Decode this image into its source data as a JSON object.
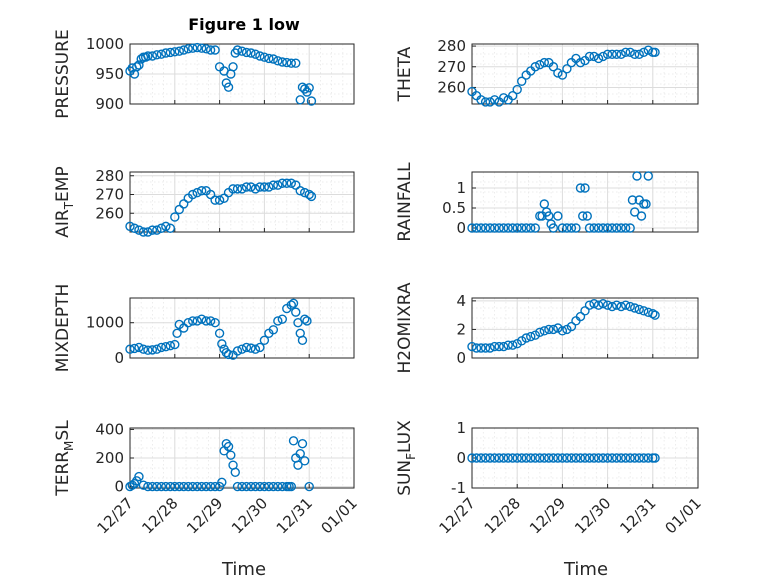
{
  "figure": {
    "title": "Figure 1 low",
    "xlabel": "Time"
  },
  "colors": {
    "marker": "#0072BD",
    "axis": "#262626"
  },
  "chart_data": [
    {
      "id": "pressure",
      "type": "scatter",
      "ylabel": "PRESSURE",
      "ylim": [
        900,
        1000
      ],
      "yticks": [
        "900",
        "950",
        "1000"
      ],
      "ytick_values": [
        900,
        950,
        1000
      ],
      "x": [
        0,
        0.05,
        0.1,
        0.15,
        0.2,
        0.25,
        0.3,
        0.35,
        0.4,
        0.5,
        0.6,
        0.7,
        0.8,
        0.9,
        1.0,
        1.1,
        1.2,
        1.3,
        1.4,
        1.5,
        1.6,
        1.7,
        1.8,
        1.9,
        2.0,
        2.1,
        2.15,
        2.2,
        2.25,
        2.3,
        2.35,
        2.4,
        2.5,
        2.6,
        2.7,
        2.8,
        2.9,
        3.0,
        3.1,
        3.2,
        3.3,
        3.4,
        3.5,
        3.6,
        3.7,
        3.8,
        3.85,
        3.9,
        3.95,
        4.0,
        4.05
      ],
      "y": [
        955,
        960,
        950,
        962,
        965,
        975,
        978,
        978,
        980,
        980,
        982,
        983,
        985,
        986,
        987,
        988,
        990,
        992,
        993,
        994,
        993,
        992,
        990,
        990,
        962,
        955,
        935,
        928,
        950,
        962,
        985,
        990,
        988,
        986,
        985,
        983,
        980,
        978,
        976,
        975,
        972,
        970,
        969,
        968,
        968,
        907,
        928,
        925,
        920,
        927,
        905
      ]
    },
    {
      "id": "theta",
      "type": "scatter",
      "ylabel": "THETA",
      "ylim": [
        252,
        281
      ],
      "yticks": [
        "260",
        "270",
        "280"
      ],
      "ytick_values": [
        260,
        270,
        280
      ],
      "x": [
        0,
        0.1,
        0.2,
        0.3,
        0.4,
        0.5,
        0.6,
        0.7,
        0.8,
        0.9,
        1.0,
        1.1,
        1.2,
        1.3,
        1.4,
        1.5,
        1.6,
        1.7,
        1.8,
        1.9,
        2.0,
        2.1,
        2.2,
        2.3,
        2.4,
        2.5,
        2.6,
        2.7,
        2.8,
        2.9,
        3.0,
        3.1,
        3.2,
        3.3,
        3.4,
        3.5,
        3.6,
        3.7,
        3.8,
        3.9,
        4.0,
        4.05
      ],
      "y": [
        258,
        256,
        254,
        253,
        253,
        254,
        253,
        255,
        254,
        256,
        259,
        263,
        266,
        268,
        270,
        271,
        272,
        272,
        270,
        267,
        266,
        269,
        272,
        274,
        272,
        273,
        275,
        275,
        274,
        275,
        276,
        276,
        276,
        276,
        277,
        277,
        276,
        276,
        277,
        278,
        277,
        277
      ]
    },
    {
      "id": "air-temp",
      "type": "scatter",
      "ylabel": "AIR_TEMP",
      "ylim": [
        250,
        282
      ],
      "yticks": [
        "260",
        "270",
        "280"
      ],
      "ytick_values": [
        260,
        270,
        280
      ],
      "x": [
        0,
        0.1,
        0.2,
        0.3,
        0.4,
        0.5,
        0.6,
        0.7,
        0.8,
        0.9,
        1.0,
        1.1,
        1.2,
        1.3,
        1.4,
        1.5,
        1.6,
        1.7,
        1.8,
        1.9,
        2.0,
        2.1,
        2.2,
        2.3,
        2.4,
        2.5,
        2.6,
        2.7,
        2.8,
        2.9,
        3.0,
        3.1,
        3.2,
        3.3,
        3.4,
        3.5,
        3.6,
        3.7,
        3.8,
        3.9,
        4.0,
        4.05
      ],
      "y": [
        253,
        252,
        251,
        250,
        250,
        251,
        251,
        252,
        253,
        252,
        258,
        262,
        265,
        268,
        270,
        271,
        272,
        272,
        270,
        267,
        267,
        268,
        271,
        273,
        273,
        273,
        274,
        274,
        273,
        274,
        274,
        274,
        275,
        275,
        276,
        276,
        276,
        275,
        272,
        271,
        270,
        269
      ]
    },
    {
      "id": "rainfall",
      "type": "scatter",
      "ylabel": "RAINFALL",
      "ylim": [
        -0.1,
        1.4
      ],
      "yticks": [
        "0",
        "0.5",
        "1"
      ],
      "ytick_values": [
        0,
        0.5,
        1
      ],
      "x": [
        0,
        0.1,
        0.2,
        0.3,
        0.4,
        0.5,
        0.6,
        0.7,
        0.8,
        0.9,
        1.0,
        1.1,
        1.2,
        1.3,
        1.4,
        1.5,
        1.55,
        1.6,
        1.65,
        1.7,
        1.75,
        1.8,
        1.9,
        2.0,
        2.1,
        2.2,
        2.3,
        2.4,
        2.45,
        2.5,
        2.55,
        2.6,
        2.7,
        2.8,
        2.9,
        3.0,
        3.1,
        3.2,
        3.3,
        3.4,
        3.5,
        3.55,
        3.6,
        3.65,
        3.7,
        3.75,
        3.8,
        3.85,
        3.9
      ],
      "y": [
        0,
        0,
        0,
        0,
        0,
        0,
        0,
        0,
        0,
        0,
        0,
        0,
        0,
        0,
        0,
        0.3,
        0.3,
        0.6,
        0.4,
        0.3,
        0.1,
        0,
        0.3,
        0,
        0,
        0,
        0,
        1.0,
        0.3,
        1.0,
        0.3,
        0,
        0,
        0,
        0,
        0,
        0,
        0,
        0,
        0,
        0,
        0.7,
        0.4,
        1.3,
        0.7,
        0.3,
        0.6,
        0.6,
        1.3
      ]
    },
    {
      "id": "mixdepth",
      "type": "scatter",
      "ylabel": "MIXDEPTH",
      "ylim": [
        0,
        1700
      ],
      "yticks": [
        "0",
        "1000"
      ],
      "ytick_values": [
        0,
        1000
      ],
      "x": [
        0,
        0.1,
        0.2,
        0.3,
        0.4,
        0.5,
        0.6,
        0.7,
        0.8,
        0.9,
        1.0,
        1.05,
        1.1,
        1.2,
        1.3,
        1.4,
        1.5,
        1.6,
        1.7,
        1.8,
        1.9,
        2.0,
        2.05,
        2.1,
        2.15,
        2.2,
        2.3,
        2.4,
        2.5,
        2.6,
        2.7,
        2.8,
        2.9,
        3.0,
        3.1,
        3.2,
        3.3,
        3.4,
        3.5,
        3.6,
        3.65,
        3.7,
        3.75,
        3.8,
        3.85,
        3.9,
        3.95
      ],
      "y": [
        250,
        270,
        300,
        250,
        220,
        230,
        250,
        300,
        320,
        350,
        380,
        700,
        950,
        850,
        1000,
        1050,
        1050,
        1100,
        1050,
        1050,
        1000,
        700,
        400,
        250,
        150,
        100,
        80,
        200,
        250,
        300,
        280,
        250,
        300,
        500,
        700,
        800,
        1050,
        1100,
        1400,
        1500,
        1550,
        1300,
        1000,
        700,
        500,
        1100,
        1050
      ]
    },
    {
      "id": "h2omixra",
      "type": "scatter",
      "ylabel": "H2OMIXRA",
      "ylim": [
        0,
        4.2
      ],
      "yticks": [
        "0",
        "2",
        "4"
      ],
      "ytick_values": [
        0,
        2,
        4
      ],
      "x": [
        0,
        0.1,
        0.2,
        0.3,
        0.4,
        0.5,
        0.6,
        0.7,
        0.8,
        0.9,
        1.0,
        1.1,
        1.2,
        1.3,
        1.4,
        1.5,
        1.6,
        1.7,
        1.8,
        1.9,
        2.0,
        2.1,
        2.2,
        2.3,
        2.4,
        2.5,
        2.6,
        2.7,
        2.8,
        2.9,
        3.0,
        3.1,
        3.2,
        3.3,
        3.4,
        3.5,
        3.6,
        3.7,
        3.8,
        3.9,
        4.0,
        4.05
      ],
      "y": [
        0.8,
        0.7,
        0.7,
        0.7,
        0.7,
        0.8,
        0.8,
        0.8,
        0.9,
        0.9,
        1.0,
        1.2,
        1.4,
        1.5,
        1.6,
        1.8,
        1.9,
        2.0,
        2.0,
        2.1,
        1.9,
        2.0,
        2.2,
        2.6,
        2.9,
        3.3,
        3.7,
        3.8,
        3.7,
        3.8,
        3.7,
        3.6,
        3.7,
        3.6,
        3.7,
        3.6,
        3.5,
        3.4,
        3.3,
        3.2,
        3.1,
        3.0
      ]
    },
    {
      "id": "terr-msl",
      "type": "scatter",
      "ylabel": "TERR_MSL",
      "ylim": [
        -10,
        410
      ],
      "yticks": [
        "0",
        "200",
        "400"
      ],
      "ytick_values": [
        0,
        200,
        400
      ],
      "x": [
        0,
        0.05,
        0.1,
        0.15,
        0.2,
        0.3,
        0.4,
        0.5,
        0.6,
        0.7,
        0.8,
        0.9,
        1.0,
        1.1,
        1.2,
        1.3,
        1.4,
        1.5,
        1.6,
        1.7,
        1.8,
        1.9,
        2.0,
        2.05,
        2.1,
        2.15,
        2.2,
        2.25,
        2.3,
        2.35,
        2.4,
        2.5,
        2.6,
        2.7,
        2.8,
        2.9,
        3.0,
        3.1,
        3.2,
        3.3,
        3.4,
        3.5,
        3.55,
        3.6,
        3.65,
        3.7,
        3.75,
        3.8,
        3.85,
        3.9,
        4.0
      ],
      "y": [
        0,
        10,
        20,
        40,
        70,
        10,
        0,
        0,
        0,
        0,
        0,
        0,
        0,
        0,
        0,
        0,
        0,
        0,
        0,
        0,
        0,
        0,
        0,
        30,
        250,
        300,
        280,
        220,
        150,
        100,
        0,
        0,
        0,
        0,
        0,
        0,
        0,
        0,
        0,
        0,
        0,
        0,
        0,
        0,
        320,
        200,
        150,
        230,
        300,
        180,
        0
      ]
    },
    {
      "id": "sun-flux",
      "type": "scatter",
      "ylabel": "SUN_FLUX",
      "ylim": [
        -1,
        1
      ],
      "yticks": [
        "-1",
        "0",
        "1"
      ],
      "ytick_values": [
        -1,
        0,
        1
      ],
      "x": [
        0,
        0.1,
        0.2,
        0.3,
        0.4,
        0.5,
        0.6,
        0.7,
        0.8,
        0.9,
        1.0,
        1.1,
        1.2,
        1.3,
        1.4,
        1.5,
        1.6,
        1.7,
        1.8,
        1.9,
        2.0,
        2.1,
        2.2,
        2.3,
        2.4,
        2.5,
        2.6,
        2.7,
        2.8,
        2.9,
        3.0,
        3.1,
        3.2,
        3.3,
        3.4,
        3.5,
        3.6,
        3.7,
        3.8,
        3.9,
        4.0,
        4.05
      ],
      "y": [
        0,
        0,
        0,
        0,
        0,
        0,
        0,
        0,
        0,
        0,
        0,
        0,
        0,
        0,
        0,
        0,
        0,
        0,
        0,
        0,
        0,
        0,
        0,
        0,
        0,
        0,
        0,
        0,
        0,
        0,
        0,
        0,
        0,
        0,
        0,
        0,
        0,
        0,
        0,
        0,
        0,
        0
      ]
    }
  ],
  "xaxis": {
    "xlim": [
      0,
      5
    ],
    "ticks": [
      "12/27",
      "12/28",
      "12/29",
      "12/30",
      "12/31",
      "01/01"
    ]
  }
}
